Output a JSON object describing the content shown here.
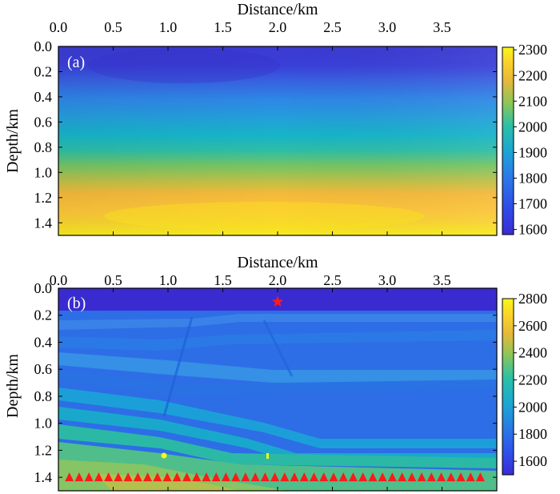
{
  "chart_data": [
    {
      "type": "heatmap",
      "panel_label": "(a)",
      "xlabel": "Distance/km",
      "ylabel": "Depth/km",
      "xlim": [
        0,
        4.0
      ],
      "ylim": [
        0,
        1.5
      ],
      "x_ticks": [
        "0.0",
        "0.5",
        "1.0",
        "1.5",
        "2.0",
        "2.5",
        "3.0",
        "3.5"
      ],
      "y_ticks": [
        "0.0",
        "0.2",
        "0.4",
        "0.6",
        "0.8",
        "1.0",
        "1.2",
        "1.4"
      ],
      "colorbar": {
        "min": 1580,
        "max": 2310,
        "ticks": [
          "1600",
          "1700",
          "1800",
          "1900",
          "2000",
          "2100",
          "2200",
          "2300"
        ]
      },
      "velocity_profile": {
        "depth": [
          0.0,
          0.1,
          0.2,
          0.3,
          0.4,
          0.5,
          0.6,
          0.7,
          0.8,
          0.9,
          1.0,
          1.1,
          1.2,
          1.3,
          1.4,
          1.5
        ],
        "velocity": [
          1640,
          1630,
          1660,
          1760,
          1840,
          1880,
          1930,
          1960,
          2020,
          2080,
          2130,
          2200,
          2230,
          2220,
          2260,
          2290
        ]
      }
    },
    {
      "type": "heatmap",
      "panel_label": "(b)",
      "xlabel": "Distance/km",
      "ylabel": "Depth/km",
      "xlim": [
        0,
        4.0
      ],
      "ylim": [
        0,
        1.5
      ],
      "x_ticks": [
        "0.0",
        "0.5",
        "1.0",
        "1.5",
        "2.0",
        "2.5",
        "3.0",
        "3.5"
      ],
      "y_ticks": [
        "0.0",
        "0.2",
        "0.4",
        "0.6",
        "0.8",
        "1.0",
        "1.2",
        "1.4"
      ],
      "colorbar": {
        "min": 1500,
        "max": 2800,
        "ticks": [
          "1600",
          "1800",
          "2000",
          "2200",
          "2400",
          "2600",
          "2800"
        ]
      },
      "water_layer": {
        "depth_bottom": 0.12,
        "velocity": 1550
      },
      "background_velocity": 1850,
      "reflector_velocities": [
        1900,
        2000,
        2050,
        2150,
        2300
      ],
      "source": {
        "x": 2.0,
        "depth": 0.1,
        "marker": "star"
      },
      "receivers": {
        "depth": 1.4,
        "x_start": 0.1,
        "x_end": 3.85,
        "count": 43,
        "marker": "triangle"
      }
    }
  ]
}
